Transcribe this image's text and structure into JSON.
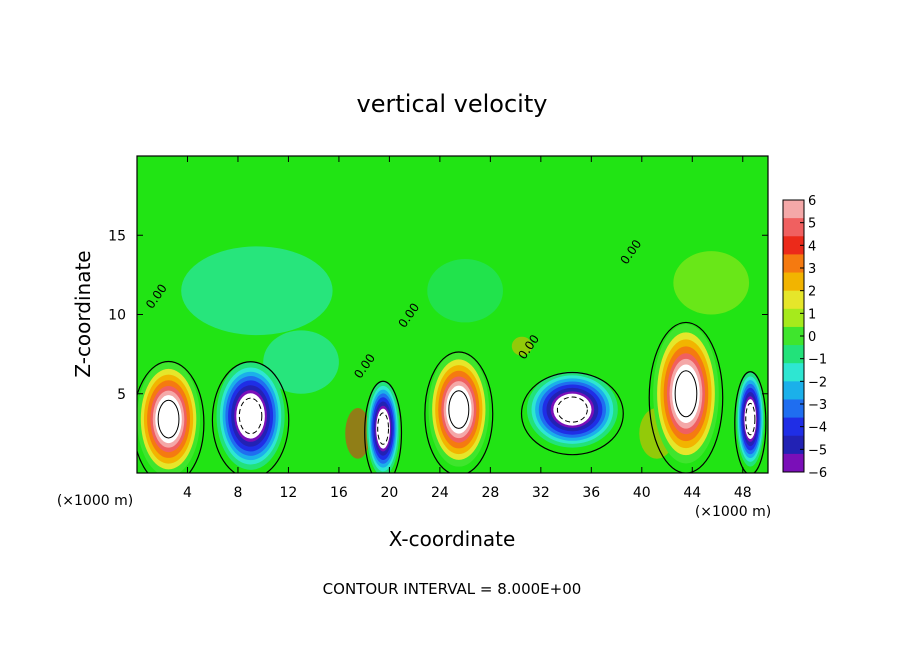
{
  "chart_data": {
    "type": "heatmap",
    "title": "vertical velocity",
    "xlabel": "X-coordinate",
    "ylabel": "Z-coordinate",
    "x_unit_left": "(×1000 m)",
    "x_unit_right": "(×1000 m)",
    "xlim": [
      0,
      50
    ],
    "ylim": [
      0,
      20
    ],
    "x_ticks": [
      4,
      8,
      12,
      16,
      20,
      24,
      28,
      32,
      36,
      40,
      44,
      48
    ],
    "y_ticks": [
      5,
      10,
      15
    ],
    "footer": "CONTOUR INTERVAL = 8.000E+00",
    "contour_label": "0.00",
    "contour_label_positions": [
      [
        1.8,
        11.0
      ],
      [
        18.3,
        6.6
      ],
      [
        21.8,
        9.8
      ],
      [
        31.3,
        7.8
      ],
      [
        39.4,
        13.8
      ]
    ],
    "colorbar": {
      "ticks": [
        "6",
        "5",
        "4",
        "3",
        "2",
        "1",
        "0",
        "−1",
        "−2",
        "−3",
        "−4",
        "−5",
        "−6"
      ],
      "colors": [
        "#f4a8a8",
        "#f06060",
        "#ec2a1a",
        "#f57a10",
        "#f2b400",
        "#e6e62a",
        "#a6ea1c",
        "#3fe52d",
        "#22e27a",
        "#2ee6d2",
        "#1bb0ea",
        "#1f6ef0",
        "#1f2ee6",
        "#2222b4",
        "#7a0fb8"
      ]
    },
    "cells": [
      {
        "x": 2.5,
        "z": 3.4,
        "rx": 2.5,
        "rz": 3.6,
        "kind": "up"
      },
      {
        "x": 9.0,
        "z": 3.6,
        "rx": 2.7,
        "rz": 3.4,
        "kind": "down"
      },
      {
        "x": 19.5,
        "z": 2.8,
        "rx": 1.3,
        "rz": 3.0,
        "kind": "down"
      },
      {
        "x": 25.5,
        "z": 4.0,
        "rx": 2.4,
        "rz": 3.6,
        "kind": "up"
      },
      {
        "x": 34.5,
        "z": 4.0,
        "rx": 3.6,
        "rz": 2.4,
        "kind": "down"
      },
      {
        "x": 43.5,
        "z": 5.0,
        "rx": 2.6,
        "rz": 4.4,
        "kind": "up"
      },
      {
        "x": 48.6,
        "z": 3.4,
        "rx": 1.1,
        "rz": 3.0,
        "kind": "down"
      }
    ],
    "blobs": [
      {
        "x": 9.5,
        "z": 11.5,
        "rx": 6.0,
        "rz": 2.8,
        "value": -1.6
      },
      {
        "x": 26.0,
        "z": 11.5,
        "rx": 3.0,
        "rz": 2.0,
        "value": -1.2
      },
      {
        "x": 13.0,
        "z": 7.0,
        "rx": 3.0,
        "rz": 2.0,
        "value": -2.0
      },
      {
        "x": 45.5,
        "z": 12.0,
        "rx": 3.0,
        "rz": 2.0,
        "value": 1.2
      },
      {
        "x": 17.5,
        "z": 2.5,
        "rx": 1.0,
        "rz": 1.6,
        "value": 4.0
      },
      {
        "x": 41.2,
        "z": 2.5,
        "rx": 1.4,
        "rz": 1.6,
        "value": 3.0
      },
      {
        "x": 30.5,
        "z": 8.0,
        "rx": 0.8,
        "rz": 0.6,
        "value": 3.0
      }
    ]
  }
}
